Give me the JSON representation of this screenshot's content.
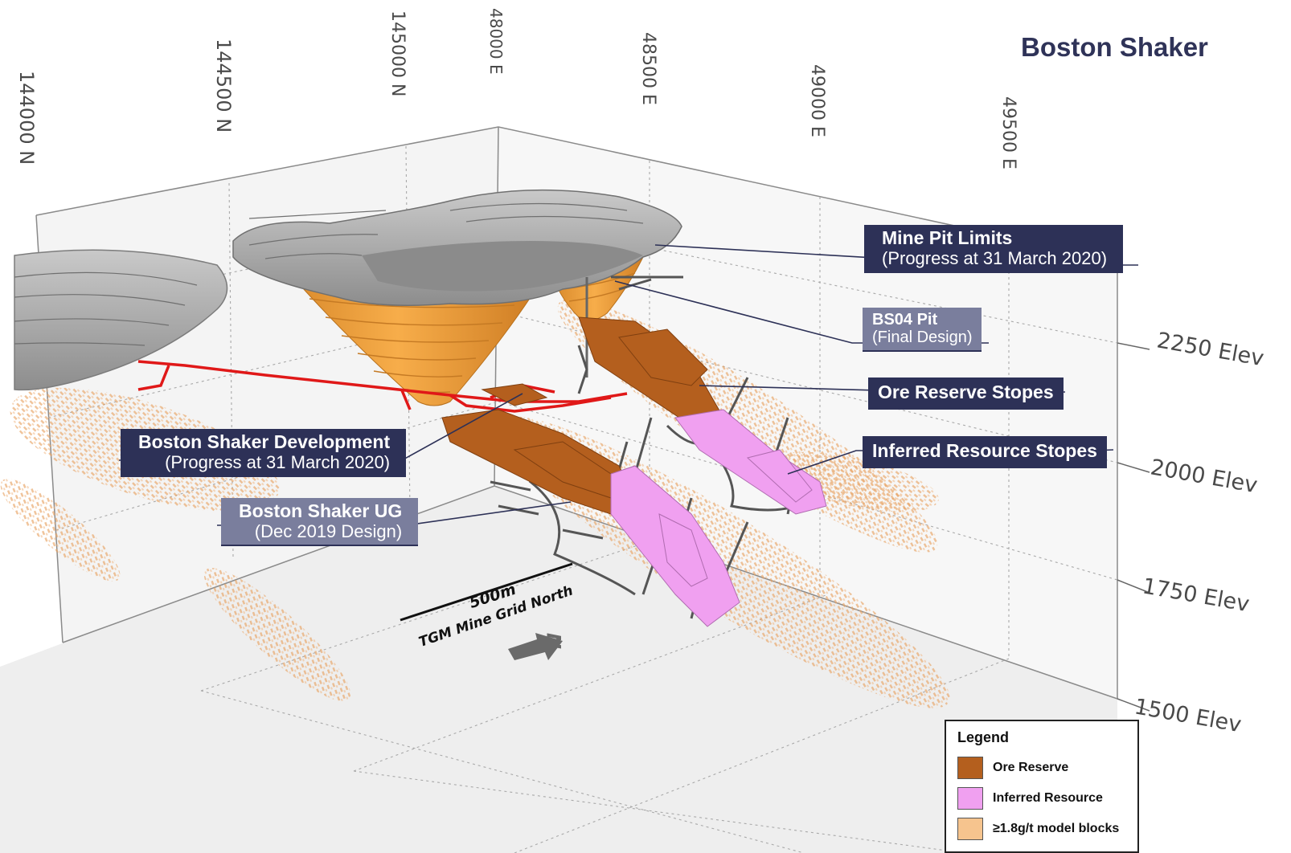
{
  "title": "Boston Shaker",
  "northing_labels": [
    "144000 N",
    "144500 N",
    "145000 N"
  ],
  "easting_labels": [
    "48000 E",
    "48500 E",
    "49000 E",
    "49500 E"
  ],
  "elevation_labels": [
    "2250 Elev",
    "2000 Elev",
    "1750 Elev",
    "1500 Elev"
  ],
  "callouts": {
    "mine_pit": {
      "main": "Mine Pit Limits",
      "sub": "(Progress at 31 March 2020)"
    },
    "bs04_pit": {
      "main": "BS04 Pit",
      "sub": "(Final Design)"
    },
    "ore_reserve": {
      "main": "Ore Reserve Stopes"
    },
    "inferred": {
      "main": "Inferred Resource Stopes"
    },
    "development": {
      "main": "Boston Shaker Development",
      "sub": "(Progress at 31 March 2020)"
    },
    "ug": {
      "main": "Boston Shaker UG",
      "sub": "(Dec 2019 Design)"
    }
  },
  "scale_bar": {
    "length": "500m",
    "north_label": "TGM Mine Grid North",
    "north_letter": "N"
  },
  "legend": {
    "title": "Legend",
    "items": [
      {
        "label": "Ore Reserve",
        "color": "#b45f1e"
      },
      {
        "label": "Inferred Resource",
        "color": "#f0a0f0"
      },
      {
        "label": "≥1.8g/t model blocks",
        "color": "#f6c48e"
      }
    ]
  },
  "colors": {
    "pit_orange": "#f2a23c",
    "pit_gray": "#9a9a9a",
    "development_red": "#e01818",
    "callout_dark": "#2d3157",
    "callout_light": "#7a7e9d"
  }
}
